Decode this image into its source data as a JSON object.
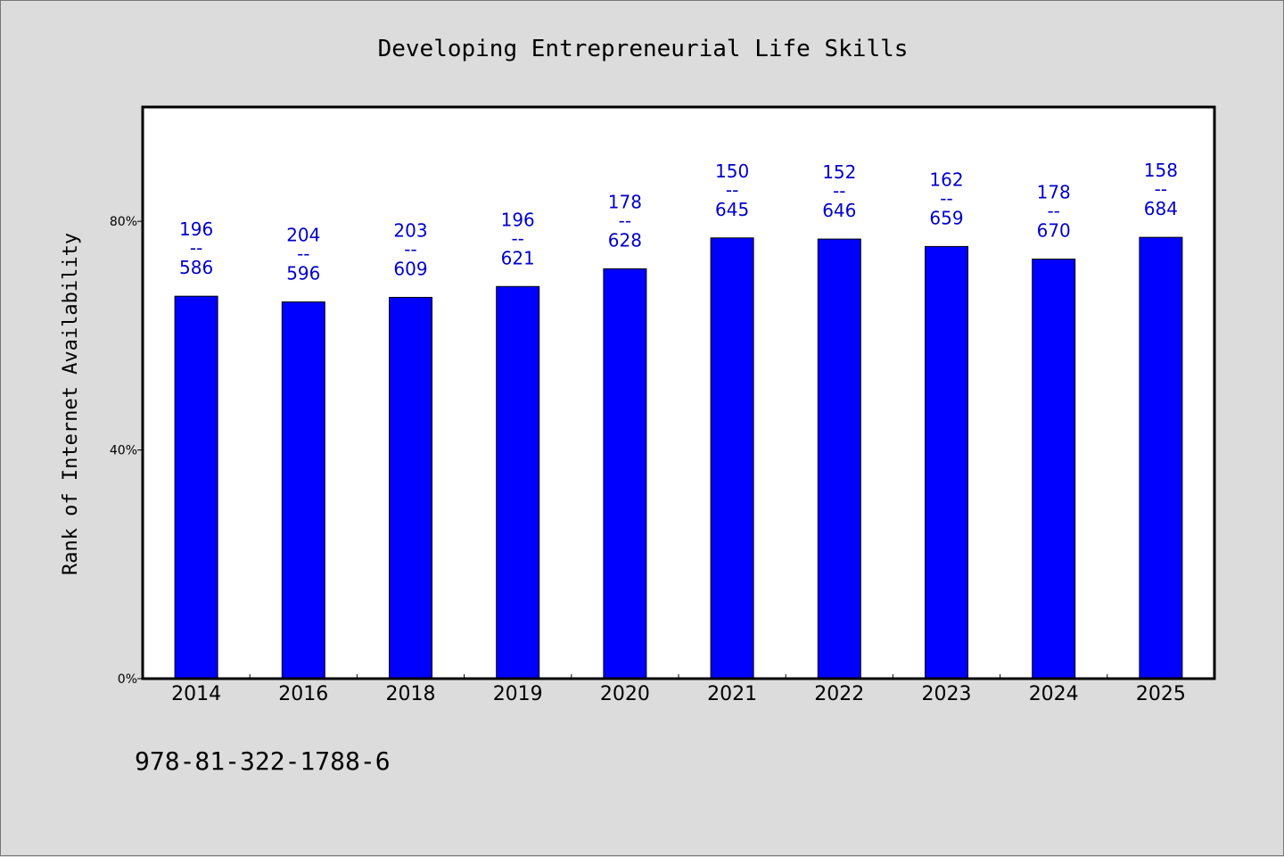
{
  "chart_data": {
    "type": "bar",
    "title": "Developing Entrepreneurial Life Skills",
    "ylabel": "Rank of Internet Availability",
    "xlabel": "",
    "categories": [
      "2014",
      "2016",
      "2018",
      "2019",
      "2020",
      "2021",
      "2022",
      "2023",
      "2024",
      "2025"
    ],
    "values": [
      66.9,
      65.9,
      66.7,
      68.6,
      71.7,
      77.1,
      76.9,
      75.6,
      73.4,
      77.2
    ],
    "ranks": [
      "196",
      "204",
      "203",
      "196",
      "178",
      "150",
      "152",
      "162",
      "178",
      "158"
    ],
    "totals": [
      "586",
      "596",
      "609",
      "621",
      "628",
      "645",
      "646",
      "659",
      "670",
      "684"
    ],
    "label_separator": "--",
    "yticks": [
      "0%",
      "40%",
      "80%"
    ],
    "ytick_values": [
      0,
      40,
      80
    ],
    "ylim": [
      0,
      100
    ],
    "bar_color": "#0000ff",
    "label_color": "#0000cc",
    "grid": false,
    "legend": "none"
  },
  "footer": {
    "isbn": "978-81-322-1788-6"
  }
}
